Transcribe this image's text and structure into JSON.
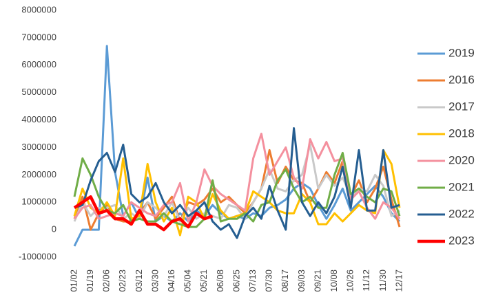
{
  "chart_data": {
    "type": "line",
    "categories": [
      "01/02",
      null,
      "01/19",
      null,
      "02/06",
      null,
      "02/23",
      null,
      "03/12",
      null,
      "03/30",
      null,
      "04/16",
      null,
      "05/04",
      null,
      "05/21",
      null,
      "06/08",
      null,
      "06/25",
      null,
      "07/13",
      null,
      "07/30",
      null,
      "08/17",
      null,
      "09/03",
      null,
      "09/21",
      null,
      "10/08",
      null,
      "10/26",
      null,
      "11/12",
      null,
      "11/30",
      null,
      "12/17"
    ],
    "series": [
      {
        "name": "2019",
        "color": "#5b9bd5",
        "values": [
          -600000,
          0,
          0,
          0,
          6700000,
          2100000,
          500000,
          1000000,
          400000,
          1900000,
          300000,
          500000,
          300000,
          600000,
          300000,
          700000,
          500000,
          900000,
          600000,
          400000,
          500000,
          400000,
          600000,
          500000,
          800000,
          900000,
          1100000,
          1500000,
          1700000,
          1500000,
          900000,
          400000,
          900000,
          1500000,
          700000,
          1000000,
          1300000,
          1600000,
          1200000,
          600000,
          300000
        ]
      },
      {
        "name": "2016",
        "color": "#ed7d31",
        "values": [
          400000,
          1200000,
          0,
          600000,
          900000,
          400000,
          300000,
          300000,
          600000,
          1000000,
          400000,
          800000,
          1200000,
          300000,
          1000000,
          900000,
          1100000,
          1500000,
          1000000,
          1200000,
          900000,
          600000,
          1000000,
          1500000,
          2900000,
          1700000,
          2300000,
          1800000,
          1700000,
          1000000,
          1500000,
          2100000,
          1700000,
          2500000,
          1200000,
          1800000,
          1000000,
          1500000,
          2300000,
          1100000,
          100000
        ]
      },
      {
        "name": "2017",
        "color": "#c9c9c9",
        "values": [
          300000,
          1000000,
          500000,
          800000,
          800000,
          900000,
          400000,
          600000,
          400000,
          1000000,
          800000,
          500000,
          1000000,
          300000,
          800000,
          400000,
          600000,
          500000,
          400000,
          900000,
          800000,
          400000,
          1000000,
          1500000,
          2200000,
          1500000,
          1400000,
          1800000,
          2000000,
          3100000,
          1500000,
          2000000,
          1600000,
          1900000,
          1200000,
          1500000,
          1400000,
          2000000,
          1600000,
          500000,
          700000
        ]
      },
      {
        "name": "2018",
        "color": "#ffc000",
        "values": [
          500000,
          1500000,
          800000,
          600000,
          1000000,
          500000,
          2600000,
          400000,
          500000,
          2400000,
          1000000,
          300000,
          800000,
          -200000,
          1200000,
          1000000,
          400000,
          1300000,
          700000,
          400000,
          500000,
          600000,
          1400000,
          1200000,
          1000000,
          700000,
          600000,
          600000,
          1300000,
          1000000,
          200000,
          200000,
          600000,
          300000,
          600000,
          900000,
          700000,
          600000,
          2900000,
          2400000,
          800000
        ]
      },
      {
        "name": "2020",
        "color": "#f4909e",
        "values": [
          400000,
          800000,
          900000,
          400000,
          500000,
          600000,
          500000,
          1000000,
          800000,
          600000,
          500000,
          900000,
          1000000,
          1700000,
          300000,
          1000000,
          2200000,
          1600000,
          1300000,
          1100000,
          900000,
          700000,
          2600000,
          3500000,
          2000000,
          2500000,
          3000000,
          1900000,
          1500000,
          3300000,
          2600000,
          3200000,
          2500000,
          2600000,
          1100000,
          1400000,
          800000,
          400000,
          1000000,
          800000,
          400000
        ]
      },
      {
        "name": "2021",
        "color": "#70ad47",
        "values": [
          1200000,
          2600000,
          2000000,
          1200000,
          700000,
          600000,
          900000,
          300000,
          400000,
          300000,
          300000,
          600000,
          300000,
          200000,
          100000,
          100000,
          400000,
          1800000,
          300000,
          400000,
          400000,
          600000,
          300000,
          900000,
          1000000,
          1800000,
          2200000,
          1500000,
          1000000,
          1200000,
          800000,
          800000,
          2000000,
          2800000,
          1300000,
          1500000,
          1200000,
          1000000,
          1500000,
          1400000,
          500000
        ]
      },
      {
        "name": "2022",
        "color": "#255e91",
        "values": [
          800000,
          900000,
          1800000,
          2500000,
          2800000,
          2100000,
          3100000,
          1300000,
          1000000,
          1200000,
          1700000,
          1000000,
          600000,
          900000,
          500000,
          700000,
          1000000,
          300000,
          0,
          200000,
          -300000,
          500000,
          800000,
          400000,
          1600000,
          700000,
          0,
          3700000,
          1000000,
          500000,
          1000000,
          600000,
          1200000,
          2300000,
          800000,
          2900000,
          700000,
          700000,
          2900000,
          800000,
          900000
        ]
      },
      {
        "name": "2023",
        "color": "#ff0000",
        "values": [
          800000,
          1000000,
          1200000,
          600000,
          700000,
          400000,
          400000,
          200000,
          700000,
          200000,
          200000,
          0,
          300000,
          400000,
          100000,
          600000,
          400000,
          500000,
          null,
          null,
          null,
          null,
          null,
          null,
          null,
          null,
          null,
          null,
          null,
          null,
          null,
          null,
          null,
          null,
          null,
          null,
          null,
          null,
          null,
          null,
          null
        ]
      }
    ],
    "ylim": [
      -1000000,
      8000000
    ],
    "yticks": [
      -1000000,
      0,
      1000000,
      2000000,
      3000000,
      4000000,
      5000000,
      6000000,
      7000000,
      8000000
    ],
    "grid": false,
    "legend": "right"
  }
}
